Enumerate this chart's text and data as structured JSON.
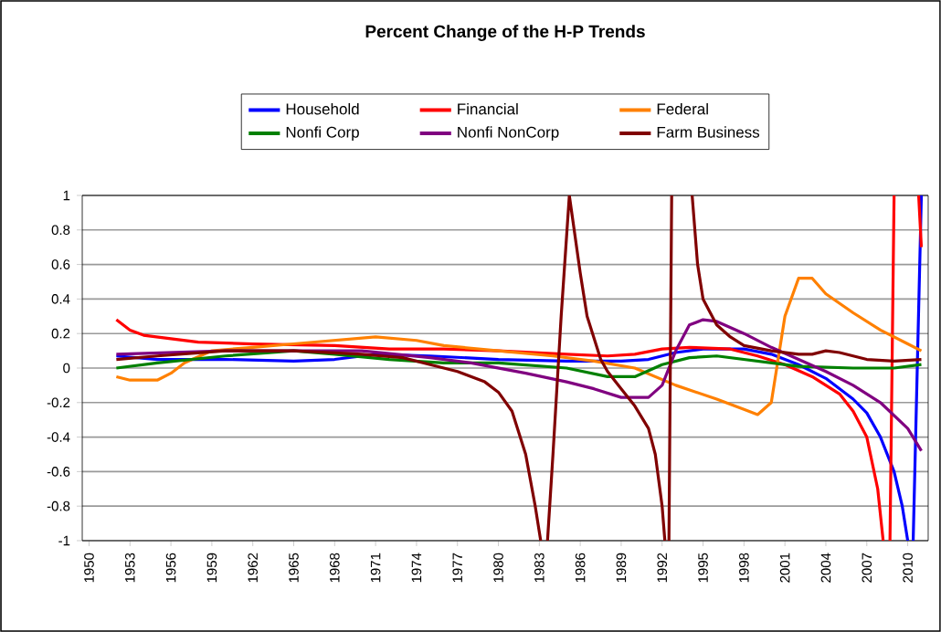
{
  "chart_data": {
    "type": "line",
    "title": "Percent Change of the H-P Trends",
    "xlim": [
      1949.5,
      2011.5
    ],
    "xticks": [
      1950,
      1953,
      1956,
      1959,
      1962,
      1965,
      1968,
      1971,
      1974,
      1977,
      1980,
      1983,
      1986,
      1989,
      1992,
      1995,
      1998,
      2001,
      2004,
      2007,
      2010
    ],
    "ylim": [
      -1,
      1
    ],
    "yticks": [
      -1,
      -0.8,
      -0.6,
      -0.4,
      -0.2,
      0,
      0.2,
      0.4,
      0.6,
      0.8,
      1
    ],
    "grid": "y",
    "legend": "top",
    "series": [
      {
        "name": "Household",
        "color": "#0000ff",
        "x": [
          1952,
          1955,
          1960,
          1965,
          1968,
          1971,
          1975,
          1980,
          1985,
          1989,
          1991,
          1993,
          1995,
          1998,
          2000,
          2002,
          2004,
          2006,
          2007,
          2008,
          2009,
          2009.6,
          2010,
          2010.2,
          2010.4,
          2010.7,
          2011
        ],
        "values": [
          0.07,
          0.05,
          0.05,
          0.04,
          0.05,
          0.08,
          0.07,
          0.05,
          0.04,
          0.04,
          0.05,
          0.09,
          0.11,
          0.11,
          0.08,
          0.02,
          -0.06,
          -0.18,
          -0.26,
          -0.4,
          -0.6,
          -0.8,
          -1,
          null,
          -1,
          0,
          1
        ]
      },
      {
        "name": "Financial",
        "color": "#ff0000",
        "x": [
          1952,
          1953,
          1954,
          1956,
          1958,
          1962,
          1968,
          1972,
          1976,
          1980,
          1985,
          1988,
          1990,
          1992,
          1994,
          1997,
          1999,
          2001,
          2003,
          2005,
          2006,
          2007,
          2007.8,
          2008.2,
          2008.4,
          2008.7,
          2009,
          2010,
          2010.8,
          2011
        ],
        "values": [
          0.28,
          0.22,
          0.19,
          0.17,
          0.15,
          0.14,
          0.13,
          0.11,
          0.11,
          0.1,
          0.08,
          0.07,
          0.08,
          0.11,
          0.12,
          0.11,
          0.07,
          0.02,
          -0.05,
          -0.15,
          -0.25,
          -0.4,
          -0.7,
          -1,
          null,
          -1,
          1,
          null,
          1,
          0.7
        ]
      },
      {
        "name": "Federal",
        "color": "#ff8000",
        "x": [
          1952,
          1953,
          1955,
          1956,
          1957,
          1959,
          1962,
          1965,
          1968,
          1971,
          1974,
          1976,
          1980,
          1984,
          1987,
          1990,
          1993,
          1996,
          1998,
          1999,
          2000,
          2001,
          2002,
          2003,
          2004,
          2006,
          2008,
          2010,
          2011
        ],
        "values": [
          -0.05,
          -0.07,
          -0.07,
          -0.03,
          0.03,
          0.1,
          0.12,
          0.14,
          0.16,
          0.18,
          0.16,
          0.13,
          0.1,
          0.07,
          0.04,
          0,
          -0.1,
          -0.18,
          -0.24,
          -0.27,
          -0.2,
          0.3,
          0.52,
          0.52,
          0.43,
          0.32,
          0.22,
          0.14,
          0.1
        ]
      },
      {
        "name": "Nonfi Corp",
        "color": "#008000",
        "x": [
          1952,
          1955,
          1960,
          1965,
          1968,
          1972,
          1976,
          1980,
          1985,
          1988,
          1990,
          1992,
          1994,
          1996,
          1999,
          2002,
          2006,
          2009,
          2011
        ],
        "values": [
          0,
          0.03,
          0.07,
          0.1,
          0.08,
          0.05,
          0.03,
          0.03,
          0,
          -0.05,
          -0.05,
          0.02,
          0.06,
          0.07,
          0.04,
          0.01,
          0,
          0,
          0.02
        ]
      },
      {
        "name": "Nonfi NonCorp",
        "color": "#800080",
        "x": [
          1952,
          1960,
          1970,
          1975,
          1978,
          1982,
          1985,
          1987,
          1989,
          1991,
          1992,
          1993,
          1994,
          1995,
          1996,
          1998,
          2000,
          2002,
          2004,
          2006,
          2008,
          2010,
          2011
        ],
        "values": [
          0.08,
          0.1,
          0.1,
          0.06,
          0.03,
          -0.03,
          -0.08,
          -0.12,
          -0.17,
          -0.17,
          -0.1,
          0.1,
          0.25,
          0.28,
          0.27,
          0.2,
          0.12,
          0.05,
          -0.02,
          -0.1,
          -0.2,
          -0.35,
          -0.48
        ]
      },
      {
        "name": "Farm Business",
        "color": "#800000",
        "x": [
          1952,
          1955,
          1960,
          1965,
          1970,
          1973,
          1975,
          1977,
          1979,
          1980,
          1981,
          1982,
          1982.7,
          1983.1,
          1983.3,
          1983.6,
          1984,
          1984.6,
          1985.2,
          1986,
          1986.5,
          1987.5,
          1988,
          1989,
          1990,
          1991,
          1991.5,
          1992,
          1992.2,
          1992.4,
          1992.5,
          1992.7,
          1993.5,
          1994.2,
          1994.6,
          1995,
          1996,
          1997,
          1998,
          2000,
          2002,
          2003,
          2004,
          2005,
          2007,
          2009,
          2011
        ],
        "values": [
          0.05,
          0.07,
          0.1,
          0.1,
          0.08,
          0.06,
          0.02,
          -0.02,
          -0.08,
          -0.14,
          -0.25,
          -0.5,
          -0.8,
          -1,
          null,
          -1,
          -0.5,
          0.3,
          1,
          0.55,
          0.3,
          0.05,
          -0.02,
          -0.12,
          -0.22,
          -0.35,
          -0.5,
          -0.8,
          -1,
          null,
          -1,
          1,
          null,
          1,
          0.6,
          0.4,
          0.25,
          0.18,
          0.13,
          0.1,
          0.08,
          0.08,
          0.1,
          0.09,
          0.05,
          0.04,
          0.05
        ]
      }
    ]
  }
}
